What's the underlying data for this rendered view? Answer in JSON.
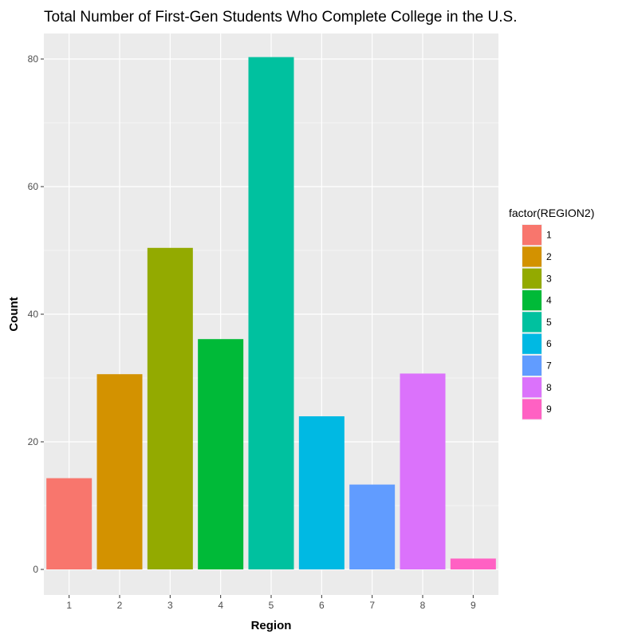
{
  "chart_data": {
    "type": "bar",
    "title": "Total Number of First-Gen Students Who Complete College in the U.S.",
    "xlabel": "Region",
    "ylabel": "Count",
    "categories": [
      "1",
      "2",
      "3",
      "4",
      "5",
      "6",
      "7",
      "8",
      "9"
    ],
    "values": [
      14.3,
      30.6,
      50.4,
      36.1,
      80.3,
      24.0,
      13.3,
      30.7,
      1.7
    ],
    "ylim": [
      -4,
      84
    ],
    "yticks": [
      "0",
      "20",
      "40",
      "60",
      "80"
    ],
    "grid": true,
    "legend": {
      "title": "factor(REGION2)",
      "position": "right",
      "labels": [
        "1",
        "2",
        "3",
        "4",
        "5",
        "6",
        "7",
        "8",
        "9"
      ]
    },
    "colors": [
      "#F8766D",
      "#D39200",
      "#93AA00",
      "#00BA38",
      "#00C19F",
      "#00B9E3",
      "#619CFF",
      "#DB72FB",
      "#FF61C3"
    ],
    "panel_background": "#EBEBEB",
    "grid_color": "#FFFFFF"
  }
}
